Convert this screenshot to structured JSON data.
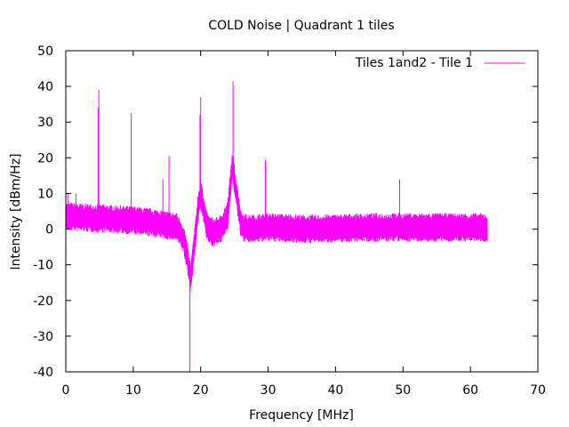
{
  "chart_data": {
    "type": "line",
    "title": "COLD Noise | Quadrant 1 tiles",
    "xlabel": "Frequency [MHz]",
    "ylabel": "Intensity [dBm/Hz]",
    "xlim": [
      0,
      70
    ],
    "ylim": [
      -40,
      50
    ],
    "xticks": [
      "0",
      "10",
      "20",
      "30",
      "40",
      "50",
      "60",
      "70"
    ],
    "yticks": [
      "-40",
      "-30",
      "-20",
      "-10",
      "0",
      "10",
      "20",
      "30",
      "40",
      "50"
    ],
    "grid": false,
    "legend_position": "top-right",
    "series": [
      {
        "name": "Tiles 1and2 - Tile 1",
        "color": "#ff00ff",
        "x_range": [
          0,
          62.5
        ],
        "baseline": [
          [
            0,
            3.5
          ],
          [
            10,
            2.5
          ],
          [
            14,
            1.5
          ],
          [
            16.5,
            0.5
          ],
          [
            17.5,
            -3
          ],
          [
            18.2,
            -10
          ],
          [
            18.5,
            -14
          ],
          [
            19.2,
            -2
          ],
          [
            19.6,
            6
          ],
          [
            20,
            10
          ],
          [
            20.5,
            5
          ],
          [
            21,
            0
          ],
          [
            22,
            -1
          ],
          [
            23,
            0
          ],
          [
            24,
            4
          ],
          [
            24.7,
            18
          ],
          [
            25.3,
            10
          ],
          [
            26,
            1
          ],
          [
            27,
            0
          ],
          [
            30,
            0.5
          ],
          [
            36,
            0
          ],
          [
            45,
            0.5
          ],
          [
            55,
            0.5
          ],
          [
            62.5,
            0.5
          ]
        ],
        "noise_width_db": 8,
        "spikes": [
          {
            "x": 0.3,
            "y": 10
          },
          {
            "x": 1.5,
            "y": 10
          },
          {
            "x": 4.8,
            "y": 34
          },
          {
            "x": 4.9,
            "y": 39
          },
          {
            "x": 9.7,
            "y": 32.5
          },
          {
            "x": 14.4,
            "y": 14
          },
          {
            "x": 15.3,
            "y": 20.5
          },
          {
            "x": 18.4,
            "y": -40
          },
          {
            "x": 19.9,
            "y": 32
          },
          {
            "x": 20,
            "y": 37
          },
          {
            "x": 24.8,
            "y": 41.5
          },
          {
            "x": 29.6,
            "y": 19.5
          },
          {
            "x": 49.5,
            "y": 14
          }
        ]
      }
    ]
  }
}
